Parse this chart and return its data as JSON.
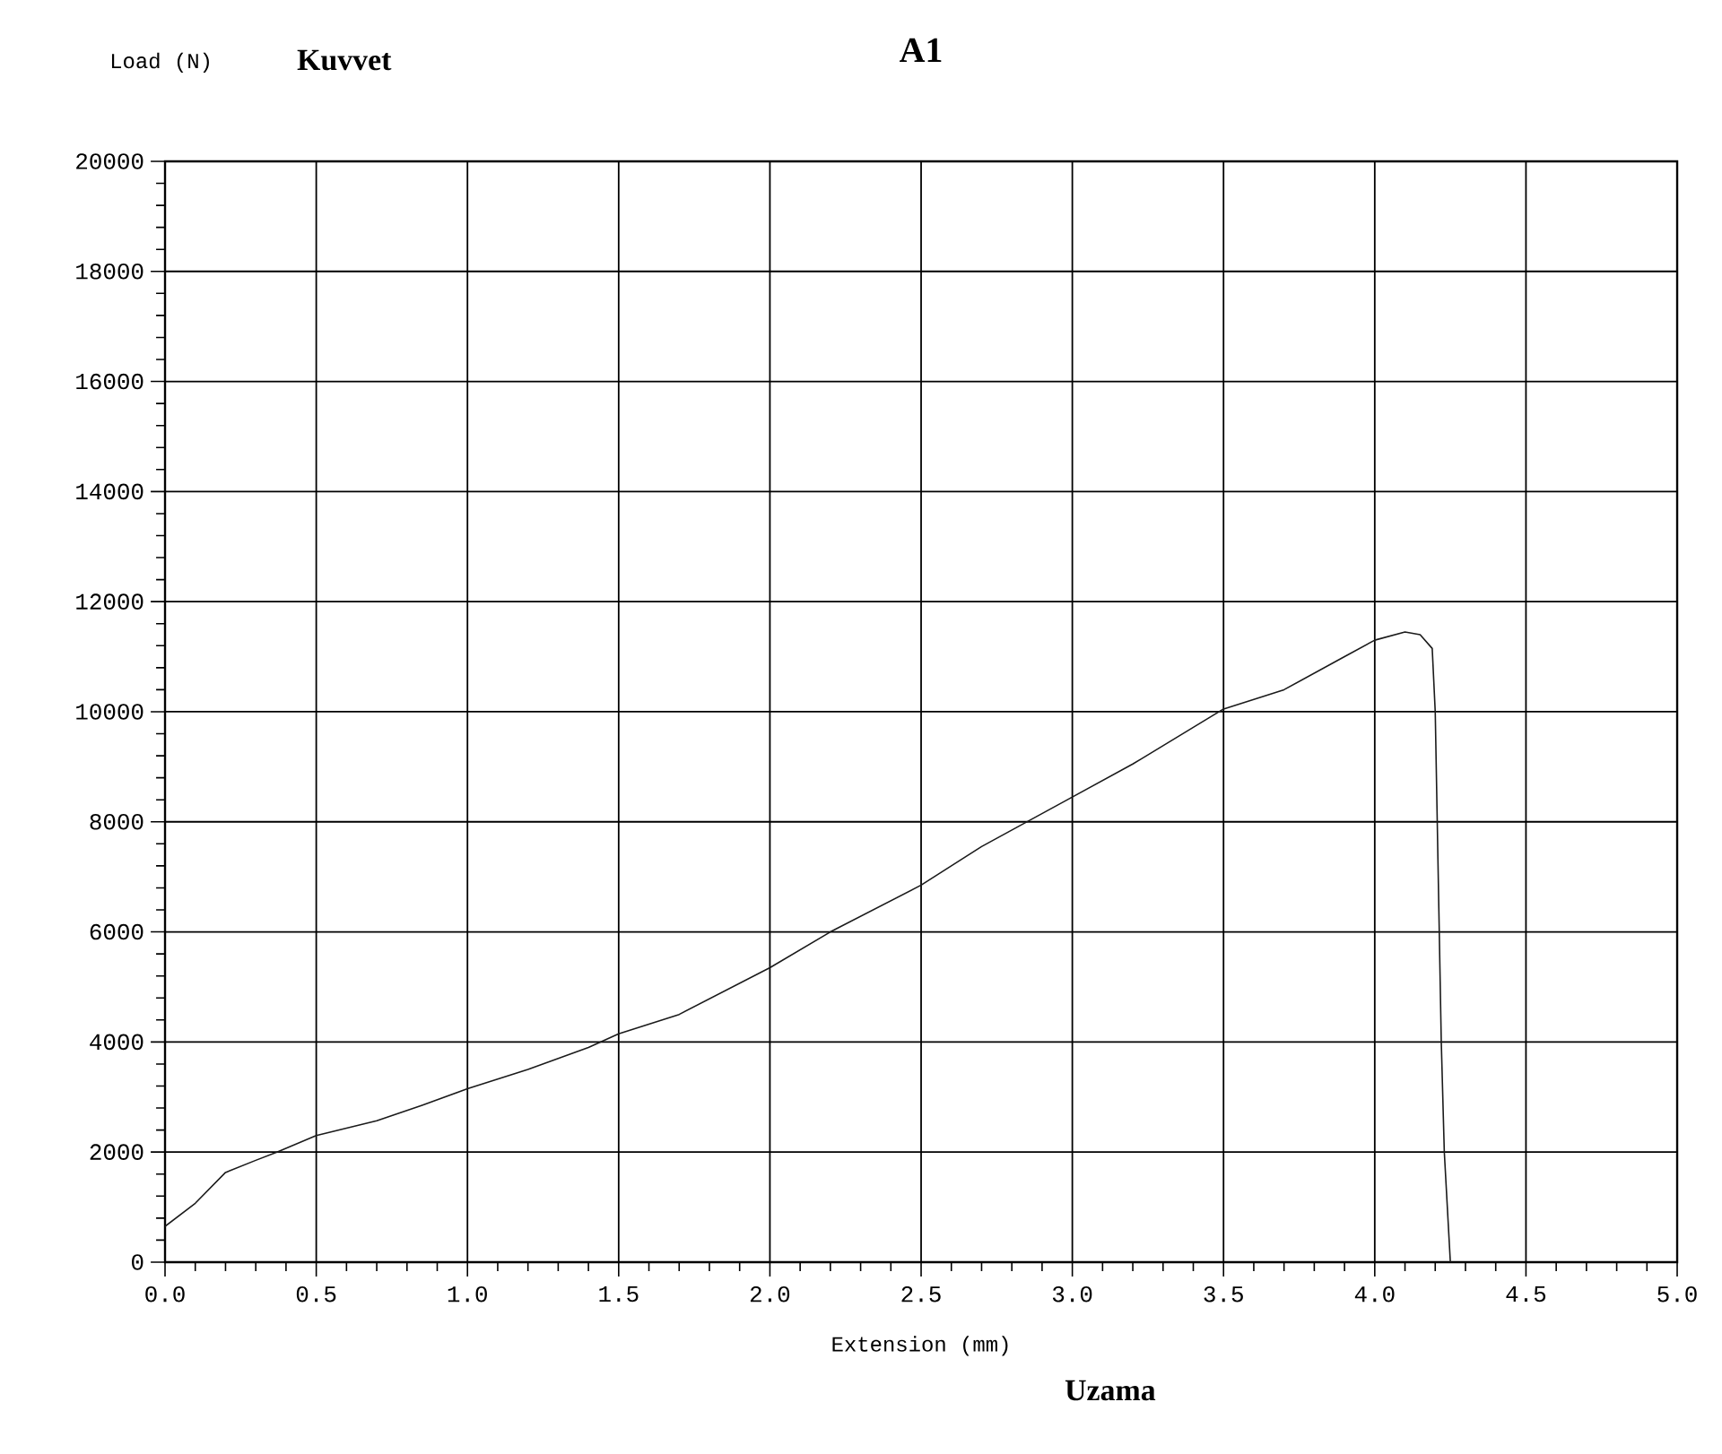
{
  "chart_data": {
    "type": "line",
    "title": "A1",
    "ylabel": "Load (N)",
    "xlabel": "Extension (mm)",
    "annotations": [
      "Kuvvet",
      "Uzama"
    ],
    "series": [
      {
        "color": "#1a1a1a",
        "x": [
          0.0,
          0.1,
          0.2,
          0.3,
          0.37,
          0.5,
          0.7,
          0.85,
          1.0,
          1.2,
          1.4,
          1.5,
          1.7,
          2.0,
          2.2,
          2.5,
          2.7,
          3.0,
          3.2,
          3.5,
          3.7,
          3.9,
          4.0,
          4.1,
          4.15,
          4.19,
          4.2,
          4.22,
          4.23,
          4.25
        ],
        "values": [
          650,
          1070,
          1630,
          1850,
          2000,
          2300,
          2570,
          2850,
          3150,
          3500,
          3900,
          4150,
          4500,
          5350,
          6000,
          6850,
          7550,
          8450,
          9050,
          10050,
          10400,
          11000,
          11300,
          11450,
          11400,
          11150,
          10000,
          4000,
          2000,
          0
        ]
      }
    ],
    "xlim": [
      0,
      5
    ],
    "ylim": [
      0,
      20000
    ],
    "xticks": [
      {
        "value": 0,
        "label": "0.0"
      },
      {
        "value": 0.5,
        "label": "0.5"
      },
      {
        "value": 1,
        "label": "1.0"
      },
      {
        "value": 1.5,
        "label": "1.5"
      },
      {
        "value": 2,
        "label": "2.0"
      },
      {
        "value": 2.5,
        "label": "2.5"
      },
      {
        "value": 3,
        "label": "3.0"
      },
      {
        "value": 3.5,
        "label": "3.5"
      },
      {
        "value": 4,
        "label": "4.0"
      },
      {
        "value": 4.5,
        "label": "4.5"
      },
      {
        "value": 5,
        "label": "5.0"
      }
    ],
    "yticks": [
      0,
      2000,
      4000,
      6000,
      8000,
      10000,
      12000,
      14000,
      16000,
      18000,
      20000
    ],
    "grid": true,
    "marker": "none",
    "line_style": "solid"
  }
}
